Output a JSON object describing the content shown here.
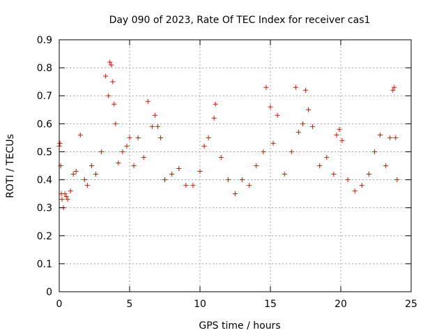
{
  "chart_data": {
    "type": "scatter",
    "title": "Day 090 of 2023, Rate Of TEC Index for receiver cas1",
    "xlabel": "GPS time / hours",
    "ylabel": "ROTI / TECUs",
    "xlim": [
      0,
      25
    ],
    "ylim": [
      0,
      0.9
    ],
    "x_ticks": [
      "0",
      "5",
      "10",
      "15",
      "20",
      "25"
    ],
    "y_ticks": [
      "0",
      "0.1",
      "0.2",
      "0.3",
      "0.4",
      "0.5",
      "0.6",
      "0.7",
      "0.8",
      "0.9"
    ],
    "grid": true,
    "marker": "+",
    "color": "#ff0000",
    "series": [
      {
        "x": [
          0.0,
          0.05,
          0.1,
          0.15,
          0.2,
          0.3,
          0.4,
          0.5,
          0.6,
          0.8,
          1.0,
          1.2,
          1.5,
          1.8,
          2.0,
          2.3,
          2.6,
          3.0,
          3.3,
          3.5,
          3.6,
          3.7,
          3.8,
          3.9,
          4.0,
          4.2,
          4.5,
          4.8,
          5.0,
          5.3,
          5.6,
          6.0,
          6.3,
          6.6,
          6.8,
          7.0,
          7.2,
          7.5,
          8.0,
          8.5,
          9.0,
          9.5,
          10.0,
          10.3,
          10.6,
          11.0,
          11.1,
          11.5,
          12.0,
          12.5,
          13.0,
          13.5,
          14.0,
          14.5,
          14.7,
          15.0,
          15.2,
          15.5,
          16.0,
          16.5,
          16.8,
          17.0,
          17.3,
          17.5,
          17.7,
          18.0,
          18.5,
          19.0,
          19.5,
          19.7,
          19.9,
          20.1,
          20.5,
          21.0,
          21.5,
          22.0,
          22.4,
          22.8,
          23.2,
          23.5,
          23.7,
          23.8,
          23.9,
          24.0
        ],
        "y": [
          0.52,
          0.53,
          0.45,
          0.35,
          0.33,
          0.3,
          0.35,
          0.34,
          0.33,
          0.36,
          0.42,
          0.43,
          0.56,
          0.4,
          0.38,
          0.45,
          0.42,
          0.5,
          0.77,
          0.7,
          0.82,
          0.81,
          0.75,
          0.67,
          0.6,
          0.46,
          0.5,
          0.52,
          0.55,
          0.45,
          0.55,
          0.48,
          0.68,
          0.59,
          0.63,
          0.59,
          0.55,
          0.4,
          0.42,
          0.44,
          0.38,
          0.38,
          0.43,
          0.52,
          0.55,
          0.62,
          0.67,
          0.48,
          0.4,
          0.35,
          0.4,
          0.38,
          0.45,
          0.5,
          0.73,
          0.66,
          0.53,
          0.63,
          0.42,
          0.5,
          0.73,
          0.57,
          0.6,
          0.72,
          0.65,
          0.59,
          0.45,
          0.48,
          0.42,
          0.56,
          0.58,
          0.54,
          0.4,
          0.36,
          0.38,
          0.42,
          0.5,
          0.56,
          0.45,
          0.55,
          0.72,
          0.73,
          0.55,
          0.4
        ]
      }
    ]
  }
}
